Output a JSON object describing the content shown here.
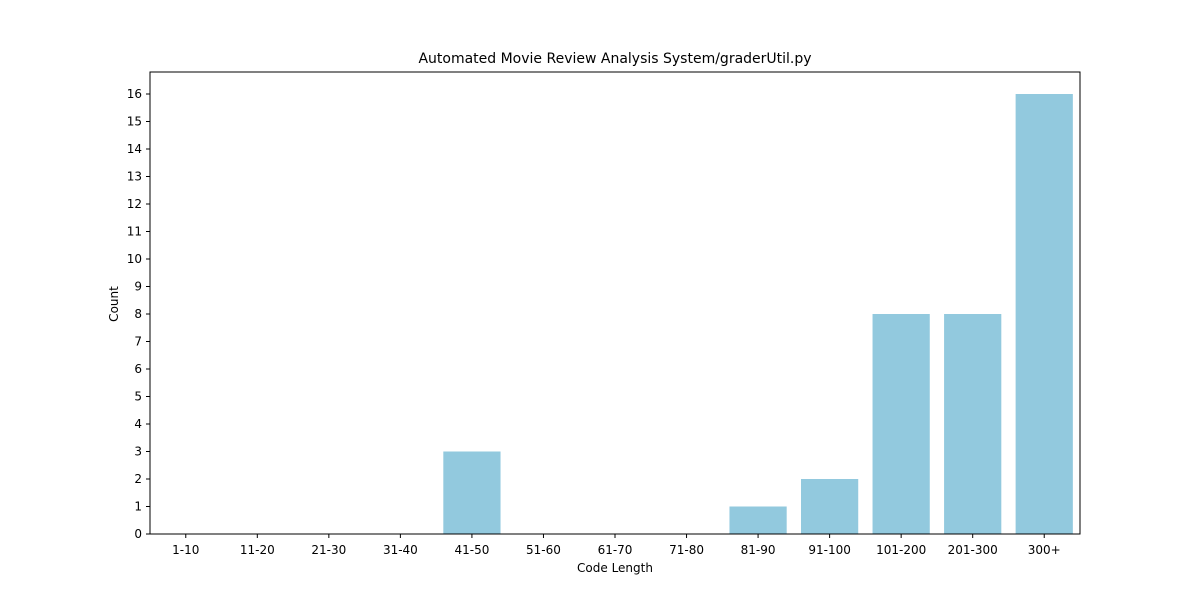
{
  "chart_data": {
    "type": "bar",
    "title": "Automated Movie Review Analysis System/graderUtil.py",
    "xlabel": "Code Length",
    "ylabel": "Count",
    "categories": [
      "1-10",
      "11-20",
      "21-30",
      "31-40",
      "41-50",
      "51-60",
      "61-70",
      "71-80",
      "81-90",
      "91-100",
      "101-200",
      "201-300",
      "300+"
    ],
    "values": [
      0,
      0,
      0,
      0,
      3,
      0,
      0,
      0,
      1,
      2,
      8,
      8,
      16
    ],
    "ylim": [
      0,
      16.8
    ],
    "yticks": [
      0,
      1,
      2,
      3,
      4,
      5,
      6,
      7,
      8,
      9,
      10,
      11,
      12,
      13,
      14,
      15,
      16
    ],
    "bar_color": "#92c9de",
    "grid": false,
    "legend": false
  }
}
